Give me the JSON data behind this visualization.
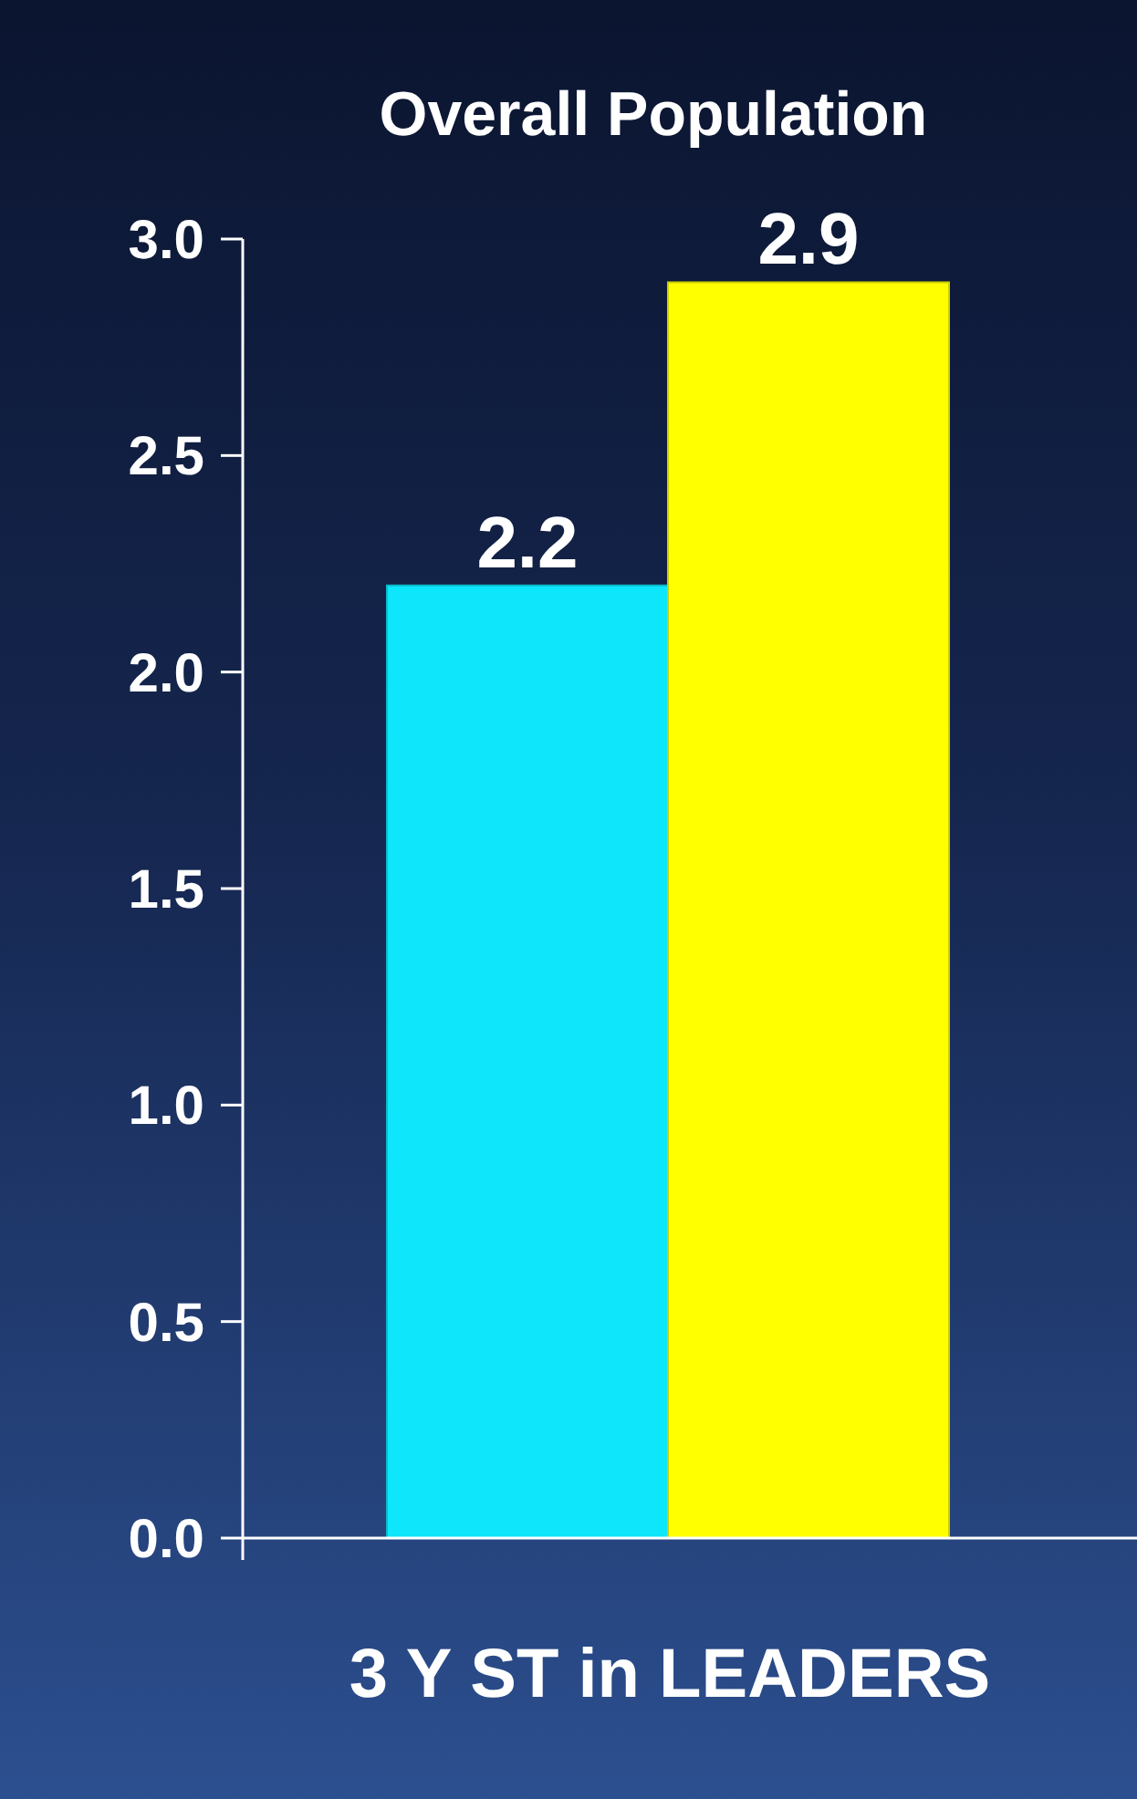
{
  "chart_data": {
    "type": "bar",
    "title": "Overall Population",
    "xlabel": "3 Y ST in LEADERS",
    "categories": [
      null,
      null
    ],
    "values": [
      2.2,
      2.9
    ],
    "colors": [
      "#0ee6fb",
      "#ffff00"
    ],
    "ylim": [
      0,
      3
    ],
    "yticks": [
      {
        "value": 0,
        "label": "0.0"
      },
      {
        "value": 0.5,
        "label": "0.5"
      },
      {
        "value": 1,
        "label": "1.0"
      },
      {
        "value": 1.5,
        "label": "1.5"
      },
      {
        "value": 2,
        "label": "2.0"
      },
      {
        "value": 2.5,
        "label": "2.5"
      },
      {
        "value": 3,
        "label": "3.0"
      }
    ],
    "data_labels": true
  }
}
